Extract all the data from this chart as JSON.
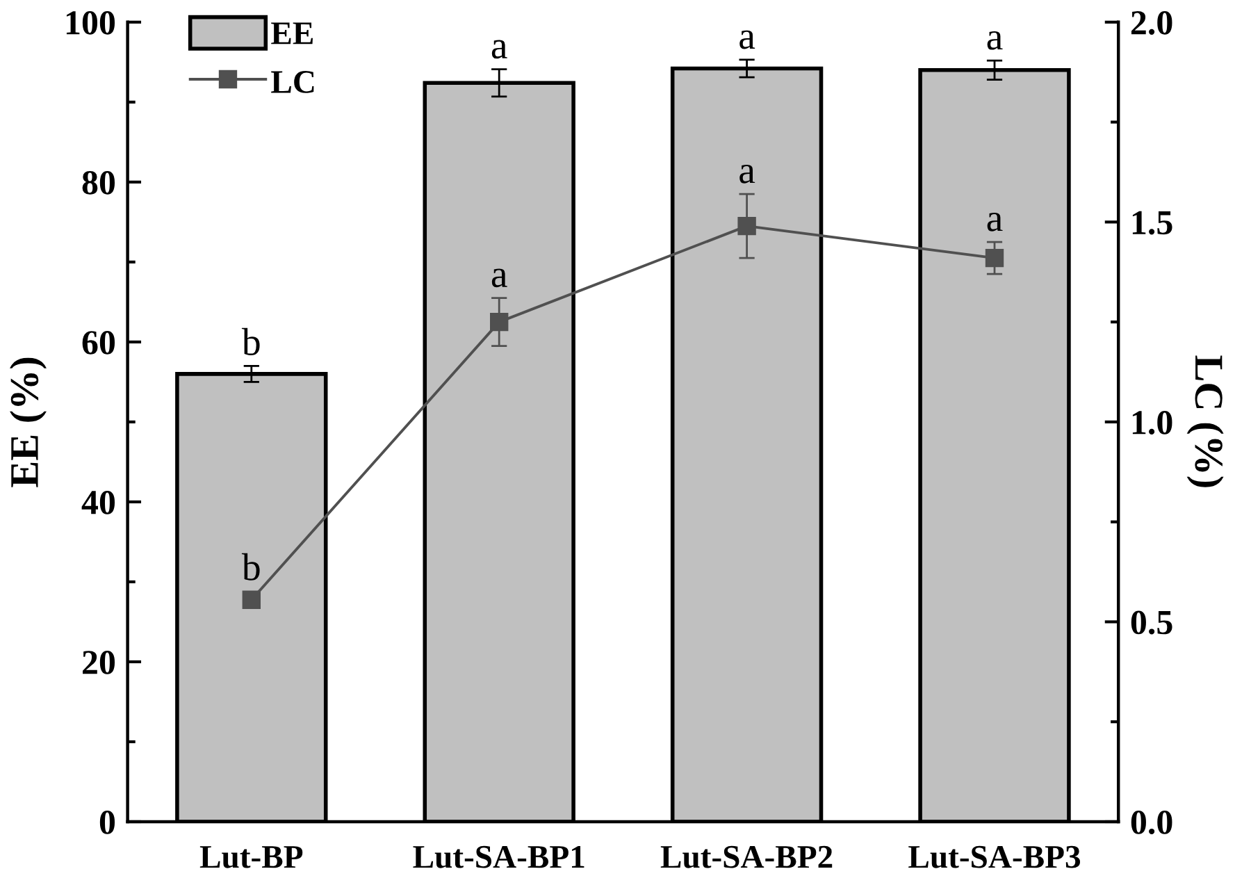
{
  "chart_data": {
    "type": "bar",
    "categories": [
      "Lut-BP",
      "Lut-SA-BP1",
      "Lut-SA-BP2",
      "Lut-SA-BP3"
    ],
    "ylabel": "EE (%)",
    "y2label": "LC (%)",
    "ylim": [
      0,
      100
    ],
    "yticks": [
      0,
      {
        "value": 10,
        "label": null
      },
      20,
      {
        "value": 30,
        "label": null
      },
      40,
      {
        "value": 50,
        "label": null
      },
      60,
      {
        "value": 70,
        "label": null
      },
      80,
      {
        "value": 90,
        "label": null
      },
      100
    ],
    "y2lim": [
      0,
      2.0
    ],
    "y2ticks": [
      {
        "value": 0,
        "label": "0.0"
      },
      {
        "value": 0.25,
        "label": null
      },
      {
        "value": 0.5,
        "label": "0.5"
      },
      {
        "value": 0.75,
        "label": null
      },
      {
        "value": 1.0,
        "label": "1.0"
      },
      {
        "value": 1.25,
        "label": null
      },
      {
        "value": 1.5,
        "label": "1.5"
      },
      {
        "value": 1.75,
        "label": null
      },
      {
        "value": 2.0,
        "label": "2.0"
      }
    ],
    "series": [
      {
        "name": "EE",
        "color": "#c0c0c0",
        "values": [
          56,
          92.4,
          94.2,
          94.0
        ],
        "errors": [
          1.0,
          1.7,
          1.1,
          1.2
        ],
        "value_labels": [
          "b",
          "a",
          "a",
          "a"
        ]
      },
      {
        "name": "LC",
        "type": "line",
        "axis": "y2",
        "color": "#505050",
        "values": [
          0.555,
          1.25,
          1.49,
          1.41
        ],
        "errors": [
          null,
          0.06,
          0.08,
          0.04
        ],
        "value_labels": [
          "b",
          "a",
          "a",
          "a"
        ]
      }
    ],
    "legend": "top left",
    "marker": "square",
    "line_style": "solid"
  }
}
